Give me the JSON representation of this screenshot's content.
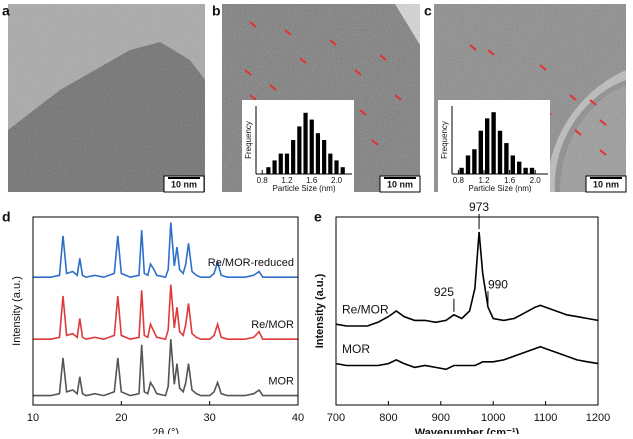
{
  "panel_labels": [
    "a",
    "b",
    "c",
    "d",
    "e"
  ],
  "scale_bars": [
    "10 nm",
    "10 nm",
    "10 nm"
  ],
  "chart_data": [
    {
      "type": "histogram",
      "xlabel": "Particle Size (nm)",
      "ylabel": "Frequency",
      "bins": [
        0.85,
        0.95,
        1.05,
        1.15,
        1.25,
        1.35,
        1.45,
        1.55,
        1.65,
        1.75,
        1.85,
        1.95,
        2.05,
        2.15
      ],
      "values": [
        1,
        2,
        3,
        3,
        5,
        7,
        9,
        8,
        6,
        5,
        3,
        2,
        1
      ],
      "color": "#000000",
      "xlim": [
        0.7,
        2.25
      ],
      "xticks": [
        0.8,
        1.2,
        1.6,
        {
          "value": 2,
          "label": "2.0"
        }
      ],
      "ylim": [
        0,
        10
      ]
    },
    {
      "type": "histogram",
      "xlabel": "Particle Size (nm)",
      "ylabel": "Frequency",
      "bins": [
        0.8,
        0.9,
        1.0,
        1.1,
        1.2,
        1.3,
        1.4,
        1.5,
        1.6,
        1.7,
        1.8,
        1.9,
        2.0
      ],
      "values": [
        1,
        3,
        4,
        7,
        9,
        10,
        7,
        5,
        3,
        2,
        1,
        1
      ],
      "color": "#000000",
      "xlim": [
        0.7,
        2.2
      ],
      "xticks": [
        0.8,
        1.2,
        1.6,
        {
          "value": 2,
          "label": "2.0"
        }
      ],
      "ylim": [
        0,
        11
      ]
    },
    {
      "type": "line",
      "xlabel": "2θ (°)",
      "ylabel": "Intensity (a.u.)",
      "x": [
        10,
        12,
        13,
        13.4,
        13.8,
        14.5,
        15,
        15.3,
        15.6,
        16,
        17,
        18,
        19.2,
        19.6,
        20,
        21,
        22,
        22.3,
        22.6,
        23,
        23.3,
        23.7,
        24,
        25,
        25.3,
        25.6,
        26,
        26.3,
        26.6,
        27,
        27.3,
        27.6,
        28,
        28.5,
        29,
        30,
        30.5,
        30.9,
        31.3,
        32,
        33,
        34,
        35,
        35.6,
        36,
        37,
        38,
        39,
        40
      ],
      "series": [
        {
          "name": "Re/MOR-reduced",
          "color": "#2f6fc9",
          "values": [
            68,
            68,
            69,
            90,
            70,
            71,
            69,
            78,
            69,
            68,
            69,
            68,
            70,
            90,
            70,
            68,
            69,
            93,
            70,
            69,
            75,
            72,
            69,
            68,
            72,
            97,
            74,
            84,
            72,
            70,
            75,
            86,
            71,
            69,
            68,
            68,
            70,
            76,
            69,
            68,
            68,
            68,
            69,
            71,
            68,
            68,
            68,
            68,
            68
          ]
        },
        {
          "name": "Re/MOR",
          "color": "#e0393b",
          "values": [
            35,
            35,
            36,
            58,
            37,
            38,
            36,
            46,
            36,
            35,
            36,
            35,
            37,
            58,
            37,
            35,
            36,
            61,
            37,
            36,
            43,
            39,
            36,
            35,
            40,
            64,
            41,
            52,
            39,
            37,
            43,
            54,
            38,
            36,
            35,
            35,
            37,
            43,
            36,
            35,
            35,
            35,
            36,
            39,
            35,
            35,
            35,
            35,
            35
          ]
        },
        {
          "name": "MOR",
          "color": "#555555",
          "values": [
            5,
            5,
            6,
            25,
            7,
            8,
            6,
            15,
            6,
            5,
            6,
            5,
            7,
            25,
            7,
            5,
            6,
            32,
            7,
            6,
            12,
            9,
            6,
            5,
            10,
            35,
            11,
            22,
            9,
            7,
            12,
            22,
            8,
            6,
            5,
            5,
            7,
            12,
            6,
            5,
            5,
            5,
            6,
            8,
            5,
            5,
            5,
            5,
            5
          ]
        }
      ],
      "xlim": [
        10,
        40
      ],
      "xticks": [
        10,
        20,
        30,
        40
      ],
      "ylim": [
        0,
        100
      ]
    },
    {
      "type": "line",
      "xlabel": "Wavenumber (cm⁻¹)",
      "ylabel": "Intensity (a.u.)",
      "x": [
        700,
        720,
        740,
        760,
        780,
        800,
        815,
        830,
        850,
        870,
        890,
        910,
        925,
        940,
        955,
        965,
        973,
        980,
        990,
        1000,
        1020,
        1040,
        1060,
        1080,
        1090,
        1100,
        1120,
        1140,
        1160,
        1180,
        1200
      ],
      "series": [
        {
          "name": "Re/MOR",
          "color": "#000000",
          "values": [
            43,
            42,
            42,
            42,
            44,
            47,
            50,
            47,
            45,
            45,
            44,
            45,
            48,
            46,
            50,
            62,
            92,
            70,
            52,
            46,
            45,
            46,
            49,
            52,
            53,
            52,
            50,
            48,
            47,
            46,
            45
          ]
        },
        {
          "name": "MOR",
          "color": "#000000",
          "values": [
            22,
            21,
            21,
            21,
            21,
            22,
            24,
            22,
            20,
            21,
            20,
            19,
            21,
            21,
            21,
            21,
            22,
            23,
            23,
            23,
            24,
            26,
            28,
            30,
            31,
            30,
            28,
            26,
            24,
            23,
            22
          ]
        }
      ],
      "annotations": [
        973,
        925,
        990
      ],
      "xlim": [
        700,
        1200
      ],
      "xticks": [
        700,
        800,
        900,
        1000,
        1100,
        1200
      ],
      "ylim": [
        0,
        100
      ]
    }
  ]
}
